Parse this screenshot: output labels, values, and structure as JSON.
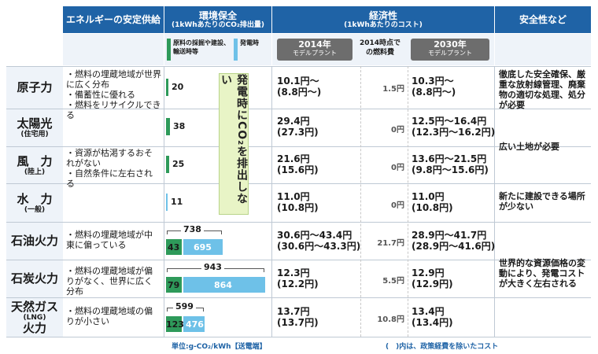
{
  "headers": {
    "supply": "エネルギーの安定供給",
    "env_main": "環境保全",
    "env_sub": "(1kWhあたりのCO₂排出量)",
    "econ_main": "経済性",
    "econ_sub": "(1kWhあたりのコスト)",
    "safety": "安全性など"
  },
  "subheaders": {
    "legend_green": "原料の採掘や建設、輸送時等",
    "legend_blue": "発電時",
    "y2014": "2014年",
    "y2014_sub": "モデルプラント",
    "fuel_head": "2014時点での燃料費",
    "y2030": "2030年",
    "y2030_sub": "モデルプラント"
  },
  "vertical_note": "発電時にCO₂を排出しない",
  "rows": [
    {
      "name": "原子力",
      "sub": "",
      "supply": [
        "・燃料の埋蔵地域が世界に広く分布",
        "・備蓄性に優れる",
        "・燃料をリサイクルできる"
      ],
      "co2_total": "20",
      "co2_green": "",
      "co2_blue": "",
      "cost2014": "10.1円〜",
      "cost2014p": "(8.8円〜)",
      "fuel": "1.5円",
      "cost2030": "10.3円〜",
      "cost2030p": "(8.8円〜)"
    },
    {
      "name": "太陽光",
      "sub": "(住宅用)",
      "co2_total": "38",
      "cost2014": "29.4円",
      "cost2014p": "(27.3円)",
      "fuel": "0円",
      "cost2030": "12.5円〜16.4円",
      "cost2030p": "(12.3円〜16.2円)"
    },
    {
      "name": "風　力",
      "sub": "(陸上)",
      "co2_total": "25",
      "cost2014": "21.6円",
      "cost2014p": "(15.6円)",
      "fuel": "0円",
      "cost2030": "13.6円〜21.5円",
      "cost2030p": "(9.8円〜15.6円)"
    },
    {
      "name": "水　力",
      "sub": "(一般)",
      "co2_total": "11",
      "cost2014": "11.0円",
      "cost2014p": "(10.8円)",
      "fuel": "0円",
      "cost2030": "11.0円",
      "cost2030p": "(10.8円)"
    },
    {
      "name": "石油火力",
      "sub": "",
      "supply": [
        "・燃料の埋蔵地域が中東に偏っている"
      ],
      "co2_total": "738",
      "co2_green": "43",
      "co2_blue": "695",
      "cost2014": "30.6円〜43.4円",
      "cost2014p": "(30.6円〜43.3円)",
      "fuel": "21.7円",
      "cost2030": "28.9円〜41.7円",
      "cost2030p": "(28.9円〜41.6円)"
    },
    {
      "name": "石炭火力",
      "sub": "",
      "supply": [
        "・燃料の埋蔵地域が偏りがなく、世界に広く分布"
      ],
      "co2_total": "943",
      "co2_green": "79",
      "co2_blue": "864",
      "cost2014": "12.3円",
      "cost2014p": "(12.2円)",
      "fuel": "5.5円",
      "cost2030": "12.9円",
      "cost2030p": "(12.9円)"
    },
    {
      "name": "天然ガス",
      "sub": "(LNG)",
      "name2": "火力",
      "supply": [
        "・燃料の埋蔵地域の偏りが小さい"
      ],
      "co2_total": "599",
      "co2_green": "123",
      "co2_blue": "476",
      "cost2014": "13.7円",
      "cost2014p": "(13.7円)",
      "fuel": "10.8円",
      "cost2030": "13.4円",
      "cost2030p": "(13.4円)"
    }
  ],
  "renewable_supply": [
    "・資源が枯渇するおそれがない",
    "・自然条件に左右される"
  ],
  "safety": {
    "nuclear": "徹底した安全確保、厳重な放射線管理、廃棄物の適切な処理、処分が必要",
    "solar_wind": "広い土地が必要",
    "hydro": "新たに建設できる場所が少ない",
    "thermal": "世界的な資源価格の変動により、発電コストが大きく左右される"
  },
  "footer": {
    "unit": "単位:g-CO₂/kWh【送電端】",
    "note": "(　)内は、政策経費を除いたコスト"
  }
}
